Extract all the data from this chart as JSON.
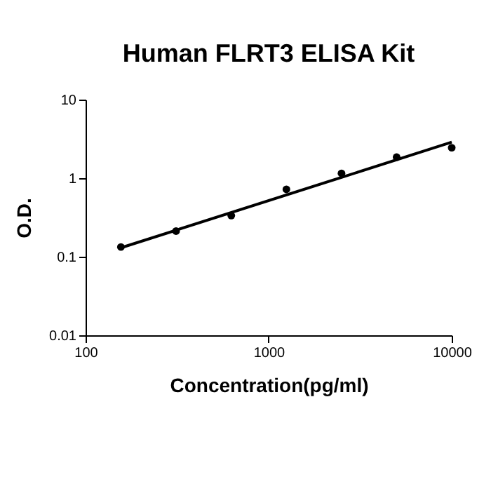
{
  "chart_data": {
    "type": "scatter",
    "title": "Human FLRT3 ELISA Kit",
    "xlabel": "Concentration(pg/ml)",
    "ylabel": "O.D.",
    "log": "xy",
    "grid": false,
    "xlim": [
      100,
      10000
    ],
    "xticks": [
      100,
      1000,
      10000
    ],
    "ylim": [
      0.01,
      10
    ],
    "yticks": [
      0.01,
      0.1,
      1,
      10
    ],
    "series": [
      {
        "color": "#000000",
        "marker": "circle",
        "x": [
          156,
          312,
          625,
          1250,
          2500,
          5000,
          10000
        ],
        "values": [
          0.133,
          0.212,
          0.334,
          0.72,
          1.15,
          1.85,
          2.44
        ]
      },
      {
        "type": "line",
        "color": "#000000",
        "marker": "none",
        "x": [
          156,
          10000
        ],
        "values": [
          0.13,
          2.87
        ]
      }
    ]
  }
}
